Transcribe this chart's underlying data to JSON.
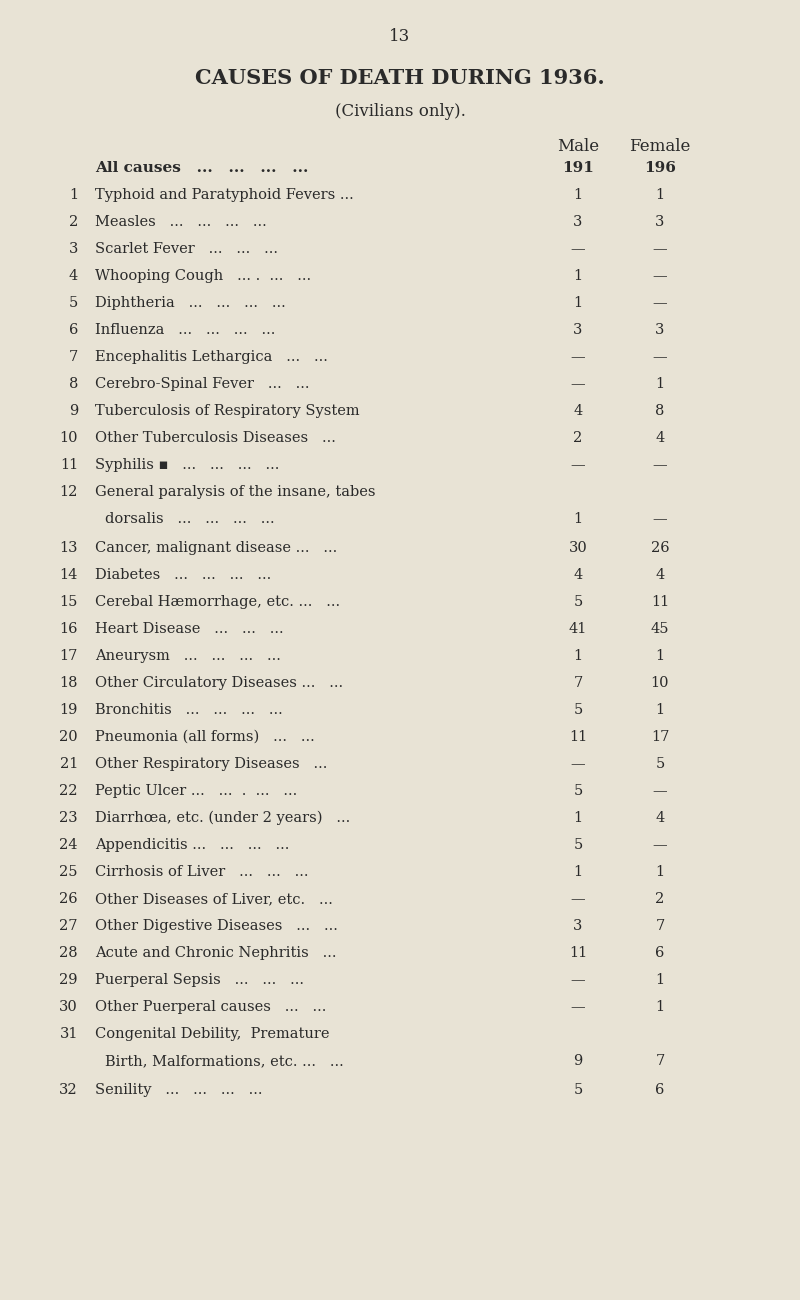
{
  "page_number": "13",
  "title": "CAUSES OF DEATH DURING 1936.",
  "subtitle": "(Civilians only).",
  "col_male": "Male",
  "col_female": "Female",
  "background_color": "#e8e3d5",
  "text_color": "#2a2a2a",
  "rows": [
    {
      "num": "",
      "cause": "All causes   ...   ...   ...   ...",
      "male": "191",
      "female": "196",
      "bold": true,
      "multiline": false
    },
    {
      "num": "1",
      "cause": "Typhoid and Paratyphoid Fevers ...",
      "male": "1",
      "female": "1",
      "bold": false,
      "multiline": false
    },
    {
      "num": "2",
      "cause": "Measles   ...   ...   ...   ...",
      "male": "3",
      "female": "3",
      "bold": false,
      "multiline": false
    },
    {
      "num": "3",
      "cause": "Scarlet Fever   ...   ...   ...",
      "male": "—",
      "female": "—",
      "bold": false,
      "multiline": false
    },
    {
      "num": "4",
      "cause": "Whooping Cough   ... .  ...   ...",
      "male": "1",
      "female": "—",
      "bold": false,
      "multiline": false
    },
    {
      "num": "5",
      "cause": "Diphtheria   ...   ...   ...   ...",
      "male": "1",
      "female": "—",
      "bold": false,
      "multiline": false
    },
    {
      "num": "6",
      "cause": "Influenza   ...   ...   ...   ...",
      "male": "3",
      "female": "3",
      "bold": false,
      "multiline": false
    },
    {
      "num": "7",
      "cause": "Encephalitis Lethargica   ...   ...",
      "male": "—",
      "female": "—",
      "bold": false,
      "multiline": false
    },
    {
      "num": "8",
      "cause": "Cerebro-Spinal Fever   ...   ...",
      "male": "—",
      "female": "1",
      "bold": false,
      "multiline": false
    },
    {
      "num": "9",
      "cause": "Tuberculosis of Respiratory System",
      "male": "4",
      "female": "8",
      "bold": false,
      "multiline": false
    },
    {
      "num": "10",
      "cause": "Other Tuberculosis Diseases   ...",
      "male": "2",
      "female": "4",
      "bold": false,
      "multiline": false
    },
    {
      "num": "11",
      "cause": "Syphilis ▪   ...   ...   ...   ...",
      "male": "—",
      "female": "—",
      "bold": false,
      "multiline": false
    },
    {
      "num": "12",
      "cause": "General paralysis of the insane, tabes",
      "cause2": "dorsalis   ...   ...   ...   ...",
      "male": "1",
      "female": "—",
      "bold": false,
      "multiline": true
    },
    {
      "num": "13",
      "cause": "Cancer, malignant disease ...   ...",
      "male": "30",
      "female": "26",
      "bold": false,
      "multiline": false
    },
    {
      "num": "14",
      "cause": "Diabetes   ...   ...   ...   ...",
      "male": "4",
      "female": "4",
      "bold": false,
      "multiline": false
    },
    {
      "num": "15",
      "cause": "Cerebal Hæmorrhage, etc. ...   ...",
      "male": "5",
      "female": "11",
      "bold": false,
      "multiline": false
    },
    {
      "num": "16",
      "cause": "Heart Disease   ...   ...   ...",
      "male": "41",
      "female": "45",
      "bold": false,
      "multiline": false
    },
    {
      "num": "17",
      "cause": "Aneurysm   ...   ...   ...   ...",
      "male": "1",
      "female": "1",
      "bold": false,
      "multiline": false
    },
    {
      "num": "18",
      "cause": "Other Circulatory Diseases ...   ...",
      "male": "7",
      "female": "10",
      "bold": false,
      "multiline": false
    },
    {
      "num": "19",
      "cause": "Bronchitis   ...   ...   ...   ...",
      "male": "5",
      "female": "1",
      "bold": false,
      "multiline": false
    },
    {
      "num": "20",
      "cause": "Pneumonia (all forms)   ...   ...",
      "male": "11",
      "female": "17",
      "bold": false,
      "multiline": false
    },
    {
      "num": "21",
      "cause": "Other Respiratory Diseases   ...",
      "male": "—",
      "female": "5",
      "bold": false,
      "multiline": false
    },
    {
      "num": "22",
      "cause": "Peptic Ulcer ...   ...  .  ...   ...",
      "male": "5",
      "female": "—",
      "bold": false,
      "multiline": false
    },
    {
      "num": "23",
      "cause": "Diarrhœa, etc. (under 2 years)   ...",
      "male": "1",
      "female": "4",
      "bold": false,
      "multiline": false
    },
    {
      "num": "24",
      "cause": "Appendicitis ...   ...   ...   ...",
      "male": "5",
      "female": "—",
      "bold": false,
      "multiline": false
    },
    {
      "num": "25",
      "cause": "Cirrhosis of Liver   ...   ...   ...",
      "male": "1",
      "female": "1",
      "bold": false,
      "multiline": false
    },
    {
      "num": "26",
      "cause": "Other Diseases of Liver, etc.   ...",
      "male": "—",
      "female": "2",
      "bold": false,
      "multiline": false
    },
    {
      "num": "27",
      "cause": "Other Digestive Diseases   ...   ...",
      "male": "3",
      "female": "7",
      "bold": false,
      "multiline": false
    },
    {
      "num": "28",
      "cause": "Acute and Chronic Nephritis   ...",
      "male": "11",
      "female": "6",
      "bold": false,
      "multiline": false
    },
    {
      "num": "29",
      "cause": "Puerperal Sepsis   ...   ...   ...",
      "male": "—",
      "female": "1",
      "bold": false,
      "multiline": false
    },
    {
      "num": "30",
      "cause": "Other Puerperal causes   ...   ...",
      "male": "—",
      "female": "1",
      "bold": false,
      "multiline": false
    },
    {
      "num": "31",
      "cause": "Congenital Debility,  Premature",
      "cause2": "Birth, Malformations, etc. ...   ...",
      "male": "9",
      "female": "7",
      "bold": false,
      "multiline": true
    },
    {
      "num": "32",
      "cause": "Senility   ...   ...   ...   ...",
      "male": "5",
      "female": "6",
      "bold": false,
      "multiline": false
    }
  ]
}
